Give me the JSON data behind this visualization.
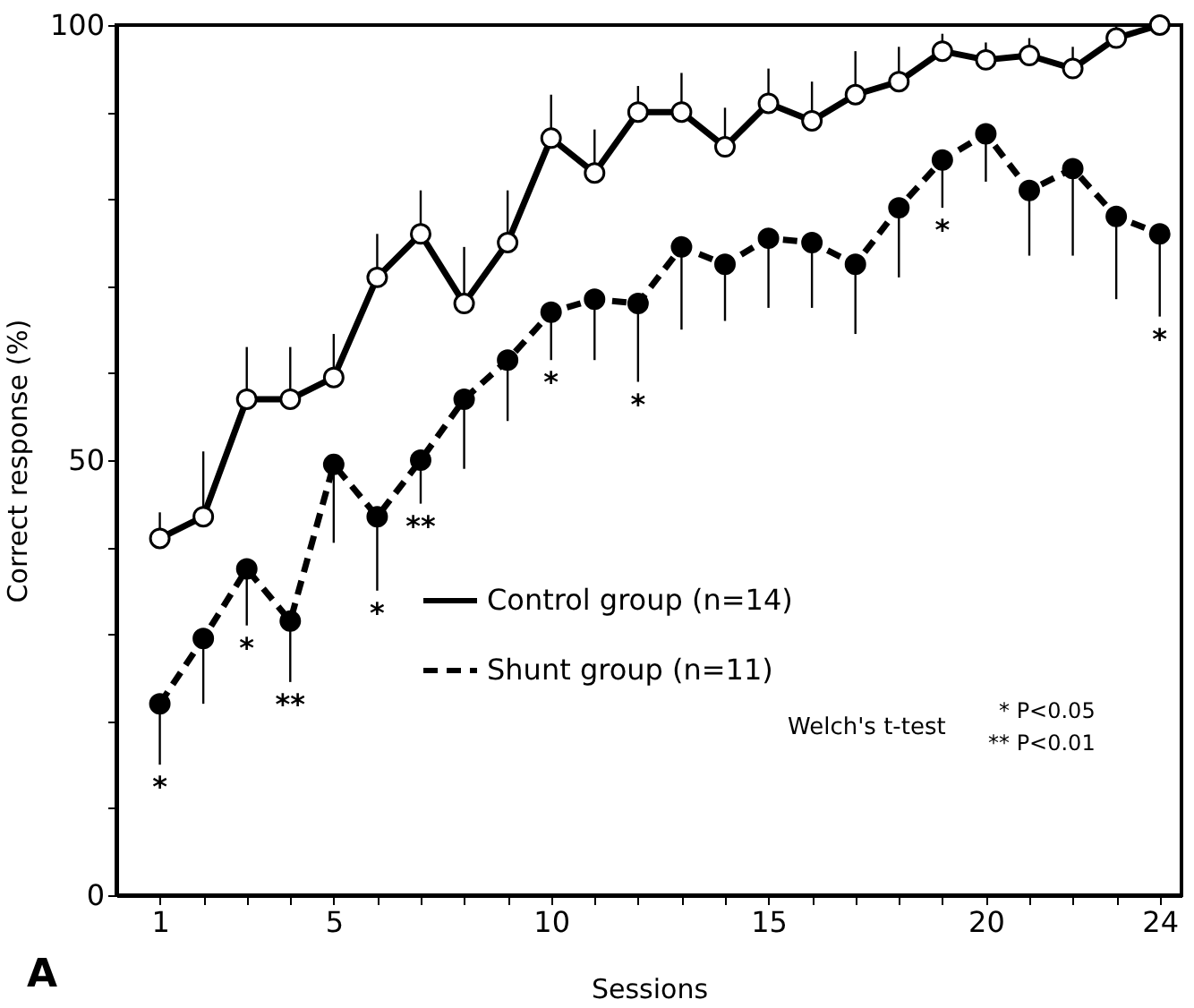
{
  "chart_data": {
    "type": "line",
    "xlabel": "Sessions",
    "ylabel": "Correct response (%)",
    "x": [
      1,
      2,
      3,
      4,
      5,
      6,
      7,
      8,
      9,
      10,
      11,
      12,
      13,
      14,
      15,
      16,
      17,
      18,
      19,
      20,
      21,
      22,
      23,
      24
    ],
    "xlim": [
      0,
      24.5
    ],
    "xticks": [
      1,
      {
        "value": 2,
        "label": null
      },
      {
        "value": 3,
        "label": null
      },
      {
        "value": 4,
        "label": null
      },
      5,
      {
        "value": 6,
        "label": null
      },
      {
        "value": 7,
        "label": null
      },
      {
        "value": 8,
        "label": null
      },
      {
        "value": 9,
        "label": null
      },
      10,
      {
        "value": 11,
        "label": null
      },
      {
        "value": 12,
        "label": null
      },
      {
        "value": 13,
        "label": null
      },
      {
        "value": 14,
        "label": null
      },
      15,
      {
        "value": 16,
        "label": null
      },
      {
        "value": 17,
        "label": null
      },
      {
        "value": 18,
        "label": null
      },
      {
        "value": 19,
        "label": null
      },
      20,
      {
        "value": 21,
        "label": null
      },
      {
        "value": 22,
        "label": null
      },
      {
        "value": 23,
        "label": null
      },
      24
    ],
    "ylim": [
      0,
      100
    ],
    "yticks": [
      0,
      {
        "value": 10,
        "label": null
      },
      {
        "value": 20,
        "label": null
      },
      {
        "value": 30,
        "label": null
      },
      {
        "value": 40,
        "label": null
      },
      50,
      {
        "value": 60,
        "label": null
      },
      {
        "value": 70,
        "label": null
      },
      {
        "value": 80,
        "label": null
      },
      {
        "value": 90,
        "label": null
      },
      100
    ],
    "grid": false,
    "legend": "center",
    "marker": "circle",
    "series": [
      {
        "name": "Control group (n=14)",
        "color": "#000000",
        "line_style": "solid",
        "values": [
          41,
          43.5,
          57,
          57,
          59.5,
          71,
          76,
          68,
          75,
          87,
          83,
          90,
          90,
          86,
          91,
          89,
          92,
          93.5,
          97,
          96,
          96.5,
          95,
          98.5,
          100
        ],
        "errors": [
          [
            41,
            44
          ],
          [
            43.5,
            51
          ],
          [
            57,
            63
          ],
          [
            57,
            63
          ],
          [
            59.5,
            64.5
          ],
          [
            71,
            76
          ],
          [
            76,
            81
          ],
          [
            68,
            74.5
          ],
          [
            75,
            81
          ],
          [
            87,
            92
          ],
          [
            83,
            88
          ],
          [
            90,
            93
          ],
          [
            90,
            94.5
          ],
          [
            86,
            90.5
          ],
          [
            91,
            95
          ],
          [
            89,
            93.5
          ],
          [
            92,
            97
          ],
          [
            93.5,
            97.5
          ],
          [
            97,
            99
          ],
          [
            96,
            98
          ],
          [
            96.5,
            98.5
          ],
          [
            95,
            97.5
          ],
          [
            98.5,
            100
          ],
          null
        ]
      },
      {
        "name": "Shunt group (n=11)",
        "color": "#000000",
        "line_style": "dashed",
        "values": [
          22,
          29.5,
          37.5,
          31.5,
          49.5,
          43.5,
          50,
          57,
          61.5,
          67,
          68.5,
          68,
          74.5,
          72.5,
          75.5,
          75,
          72.5,
          79,
          84.5,
          87.5,
          81,
          83.5,
          78,
          76
        ],
        "errors": [
          [
            15,
            22
          ],
          [
            22,
            29.5
          ],
          [
            31,
            37.5
          ],
          [
            24.5,
            31.5
          ],
          [
            40.5,
            49.5
          ],
          [
            35,
            43.5
          ],
          [
            45,
            50
          ],
          [
            49,
            57
          ],
          [
            54.5,
            61.5
          ],
          [
            61.5,
            67
          ],
          [
            61.5,
            68.5
          ],
          [
            59,
            68
          ],
          [
            65,
            74.5
          ],
          [
            66,
            72.5
          ],
          [
            67.5,
            75.5
          ],
          [
            67.5,
            75
          ],
          [
            64.5,
            72.5
          ],
          [
            71,
            79
          ],
          [
            79,
            84.5
          ],
          [
            82,
            87.5
          ],
          [
            73.5,
            81
          ],
          [
            73.5,
            83.5
          ],
          [
            68.5,
            78
          ],
          [
            66.5,
            76
          ]
        ]
      }
    ],
    "annotations": [
      {
        "text": "*",
        "x": 1,
        "y": 15
      },
      {
        "text": "*",
        "x": 3,
        "y": 31
      },
      {
        "text": "**",
        "x": 4,
        "y": 24.5
      },
      {
        "text": "*",
        "x": 6,
        "y": 35
      },
      {
        "text": "**",
        "x": 7,
        "y": 45
      },
      {
        "text": "*",
        "x": 10,
        "y": 61.5
      },
      {
        "text": "*",
        "x": 12,
        "y": 59
      },
      {
        "text": "*",
        "x": 19,
        "y": 79
      },
      {
        "text": "*",
        "x": 24,
        "y": 66.5
      },
      "Welch's t-test",
      "* P<0.05",
      "** P<0.01",
      "A"
    ]
  }
}
